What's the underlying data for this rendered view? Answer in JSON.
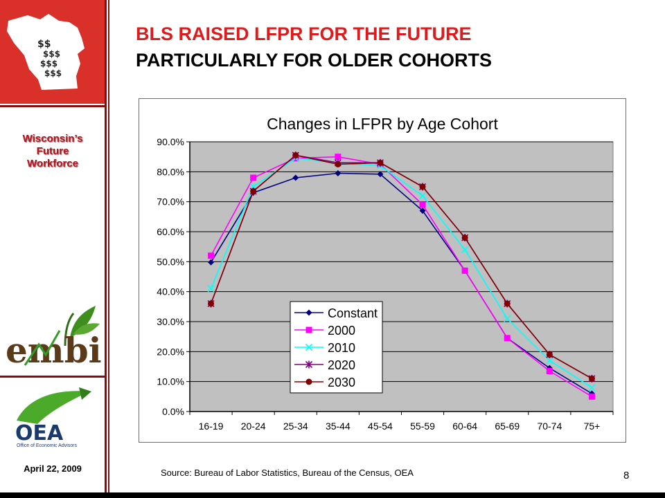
{
  "header": {
    "title_line1": "BLS RAISED LFPR FOR THE FUTURE",
    "title_line2": "PARTICULARLY FOR OLDER COHORTS"
  },
  "sidebar": {
    "brand_line1": "Wisconsin’s",
    "brand_line2": "Future",
    "brand_line3": "Workforce",
    "embi_logo_text": "embi",
    "oea_logo_text": "OEA",
    "oea_logo_subtext": "Office of Economic Advisors",
    "date": "April 22,  2009"
  },
  "footer": {
    "source": "Source: Bureau of Labor Statistics, Bureau of the Census, OEA",
    "page_number": "8"
  },
  "colors": {
    "title_red": "#e01a1a",
    "accent_red": "#8b0a0a",
    "plot_bg": "#c0c0c0"
  },
  "chart_data": {
    "type": "line",
    "title": "Changes in LFPR by Age Cohort",
    "categories": [
      "16-19",
      "20-24",
      "25-34",
      "35-44",
      "45-54",
      "55-59",
      "60-64",
      "65-69",
      "70-74",
      "75+"
    ],
    "ylim": [
      0,
      90
    ],
    "yticks": [
      "0.0%",
      "10.0%",
      "20.0%",
      "30.0%",
      "40.0%",
      "50.0%",
      "60.0%",
      "70.0%",
      "80.0%",
      "90.0%"
    ],
    "grid": true,
    "legend_position": "bottom-left inside plot",
    "series": [
      {
        "name": "Constant",
        "color": "#000080",
        "marker": "diamond",
        "values": [
          49.8,
          73,
          78,
          79.5,
          79.2,
          67,
          47,
          24.5,
          14.5,
          6
        ]
      },
      {
        "name": "2000",
        "color": "#ff00ff",
        "marker": "square",
        "values": [
          52,
          78,
          84.5,
          85,
          82.5,
          69,
          47,
          24.5,
          13.5,
          5
        ]
      },
      {
        "name": "2010",
        "color": "#00ffff",
        "marker": "x",
        "values": [
          41,
          75,
          84.5,
          83,
          82,
          72,
          54,
          31,
          17,
          8
        ]
      },
      {
        "name": "2020",
        "color": "#800080",
        "marker": "star",
        "values": [
          36,
          73.5,
          85.5,
          83,
          83,
          75,
          58,
          36,
          19,
          11
        ]
      },
      {
        "name": "2030",
        "color": "#800000",
        "marker": "circle",
        "values": [
          36,
          73.5,
          85.5,
          82.5,
          83,
          75,
          58,
          36,
          19,
          11
        ]
      }
    ]
  }
}
